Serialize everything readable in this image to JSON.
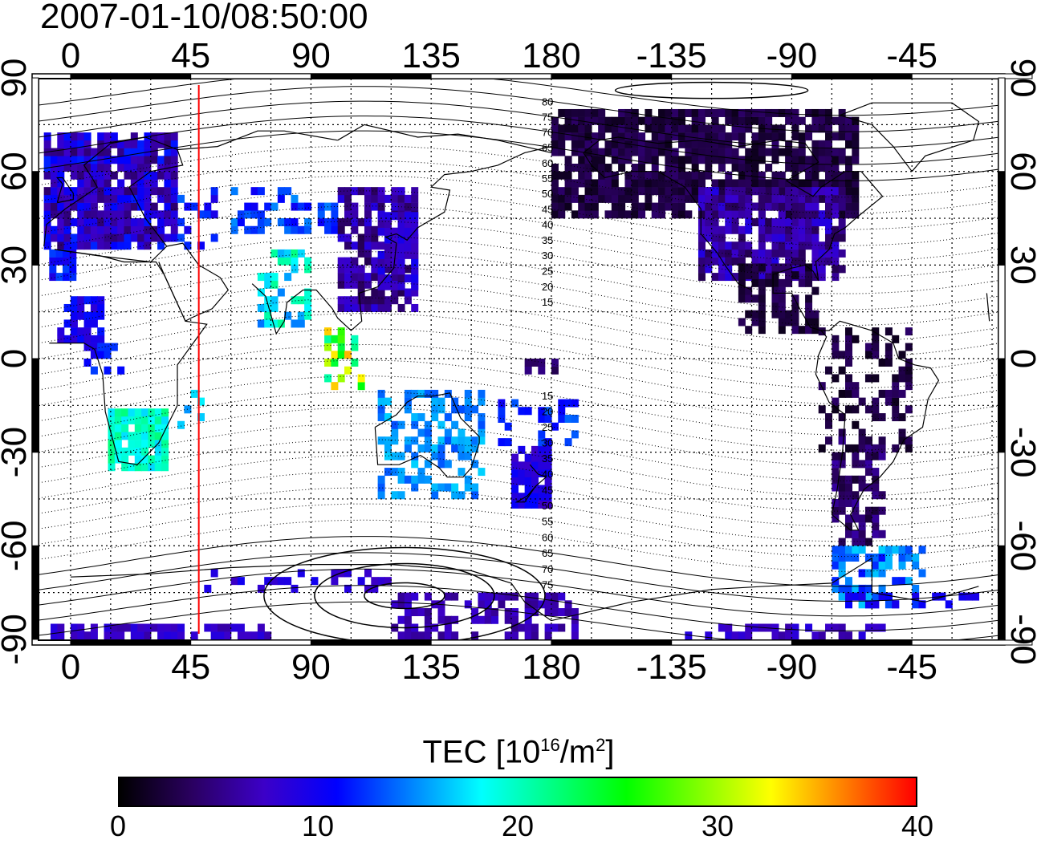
{
  "timestamp": "2007-01-10/08:50:00",
  "map": {
    "x_ticks_top": [
      "0",
      "45",
      "90",
      "135",
      "180",
      "-135",
      "-90",
      "-45"
    ],
    "x_ticks_bottom": [
      "0",
      "45",
      "90",
      "135",
      "180",
      "-135",
      "-90",
      "-45"
    ],
    "y_ticks_left": [
      "90",
      "60",
      "30",
      "0",
      "-30",
      "-60",
      "-90"
    ],
    "y_ticks_right": [
      "90",
      "60",
      "30",
      "0",
      "-30",
      "-60",
      "-90"
    ],
    "contour_labels_north": [
      "80",
      "75",
      "70",
      "65",
      "60",
      "55",
      "50",
      "45",
      "40",
      "35",
      "30",
      "25",
      "20",
      "15"
    ],
    "contour_labels_south": [
      "15",
      "20",
      "25",
      "30",
      "35",
      "40",
      "45",
      "50",
      "55",
      "60",
      "65",
      "70",
      "75"
    ],
    "terminator_longitude": 48,
    "terminator_color": "#ff0000"
  },
  "colorbar": {
    "title": "TEC  [10",
    "title_sup1": "16",
    "title_mid": "/m",
    "title_sup2": "2",
    "title_end": "]",
    "ticks": [
      "0",
      "10",
      "20",
      "30",
      "40"
    ],
    "range": [
      0,
      40
    ],
    "gradient_colors": [
      "#000000",
      "#2a0060",
      "#3c00c8",
      "#0000ff",
      "#0080ff",
      "#00ffff",
      "#00ff80",
      "#00ff00",
      "#80ff00",
      "#ffff00",
      "#ff8000",
      "#ff0000"
    ]
  }
}
